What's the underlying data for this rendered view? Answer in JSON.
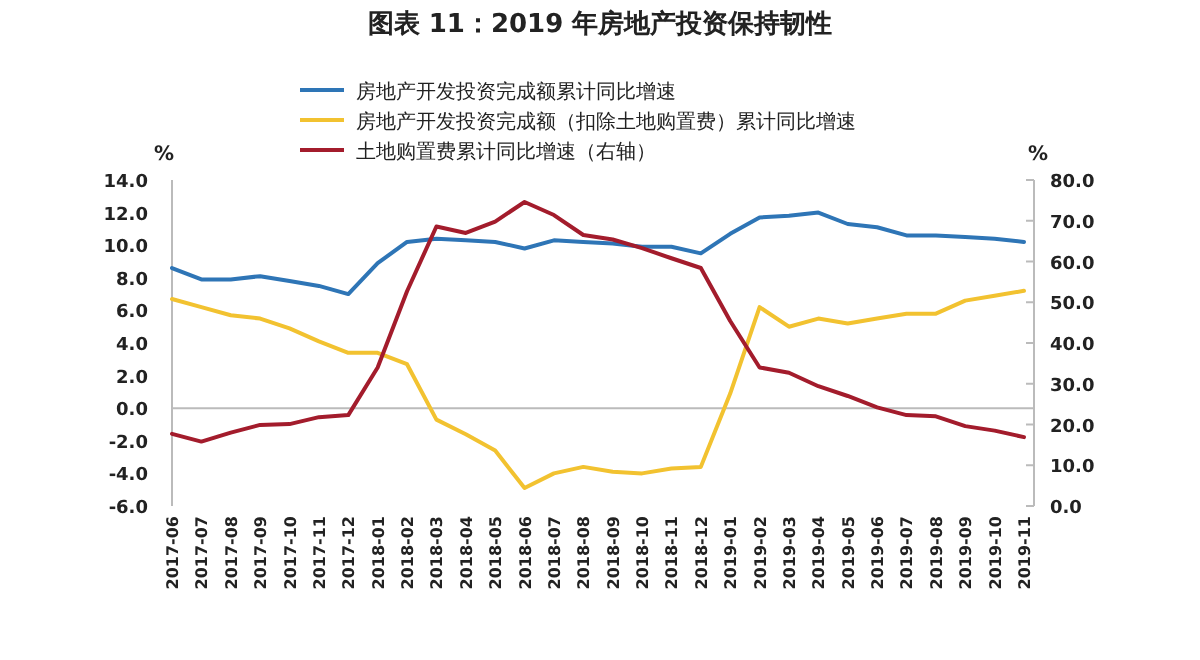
{
  "chart_data": {
    "type": "line",
    "title": "图表 11：2019 年房地产投资保持韧性",
    "ylabel": "%",
    "y2label": "%",
    "categories": [
      "2017-06",
      "2017-07",
      "2017-08",
      "2017-09",
      "2017-10",
      "2017-11",
      "2017-12",
      "2018-01",
      "2018-02",
      "2018-03",
      "2018-04",
      "2018-05",
      "2018-06",
      "2018-07",
      "2018-08",
      "2018-09",
      "2018-10",
      "2018-11",
      "2018-12",
      "2019-01",
      "2019-02",
      "2019-03",
      "2019-04",
      "2019-05",
      "2019-06",
      "2019-07",
      "2019-08",
      "2019-09",
      "2019-10",
      "2019-11"
    ],
    "series": [
      {
        "name": "房地产开发投资完成额累计同比增速",
        "color": "#2e75b6",
        "values": [
          8.6,
          7.9,
          7.9,
          8.1,
          7.8,
          7.5,
          7.0,
          8.9,
          10.2,
          10.4,
          10.3,
          10.2,
          9.8,
          10.3,
          10.2,
          10.1,
          9.9,
          9.9,
          9.5,
          10.7,
          11.7,
          11.8,
          12.0,
          11.3,
          11.1,
          10.6,
          10.6,
          10.5,
          10.4,
          10.2
        ]
      },
      {
        "name": "房地产开发投资完成额（扣除土地购置费）累计同比增速",
        "color": "#f2c230",
        "values": [
          6.7,
          6.2,
          5.7,
          5.5,
          4.9,
          4.1,
          3.4,
          3.4,
          2.7,
          -0.7,
          -1.6,
          -2.6,
          -4.9,
          -4.0,
          -3.6,
          -3.9,
          -4.0,
          -3.7,
          -3.6,
          0.9,
          6.2,
          5.0,
          5.5,
          5.2,
          5.5,
          5.8,
          5.8,
          6.6,
          6.9,
          7.2
        ]
      },
      {
        "name": "土地购置费累计同比增速（右轴）",
        "color": "#a31c2c",
        "axis": "y2",
        "values": [
          17.7,
          15.8,
          18.0,
          19.9,
          20.1,
          21.8,
          22.3,
          34.0,
          52.7,
          68.6,
          67.0,
          69.8,
          74.6,
          71.4,
          66.5,
          65.4,
          63.3,
          60.8,
          58.4,
          45.4,
          34.0,
          32.7,
          29.4,
          27.0,
          24.2,
          22.3,
          22.0,
          19.6,
          18.5,
          16.9
        ]
      }
    ],
    "ylim": [
      -6,
      14
    ],
    "yticks": [
      {
        "value": -6,
        "label": "-6.0"
      },
      {
        "value": -4,
        "label": "-4.0"
      },
      {
        "value": -2,
        "label": "-2.0"
      },
      {
        "value": 0,
        "label": "0.0"
      },
      {
        "value": 2,
        "label": "2.0"
      },
      {
        "value": 4,
        "label": "4.0"
      },
      {
        "value": 6,
        "label": "6.0"
      },
      {
        "value": 8,
        "label": "8.0"
      },
      {
        "value": 10,
        "label": "10.0"
      },
      {
        "value": 12,
        "label": "12.0"
      },
      {
        "value": 14,
        "label": "14.0"
      }
    ],
    "y2lim": [
      0,
      80
    ],
    "y2ticks": [
      {
        "value": 0,
        "label": "0.0"
      },
      {
        "value": 10,
        "label": "10.0"
      },
      {
        "value": 20,
        "label": "20.0"
      },
      {
        "value": 30,
        "label": "30.0"
      },
      {
        "value": 40,
        "label": "40.0"
      },
      {
        "value": 50,
        "label": "50.0"
      },
      {
        "value": 60,
        "label": "60.0"
      },
      {
        "value": 70,
        "label": "70.0"
      },
      {
        "value": 80,
        "label": "80.0"
      }
    ],
    "ref_lines": [
      {
        "axis": "y",
        "value": 0,
        "color": "#bbbbbb"
      }
    ],
    "legend": "top",
    "grid": false
  }
}
